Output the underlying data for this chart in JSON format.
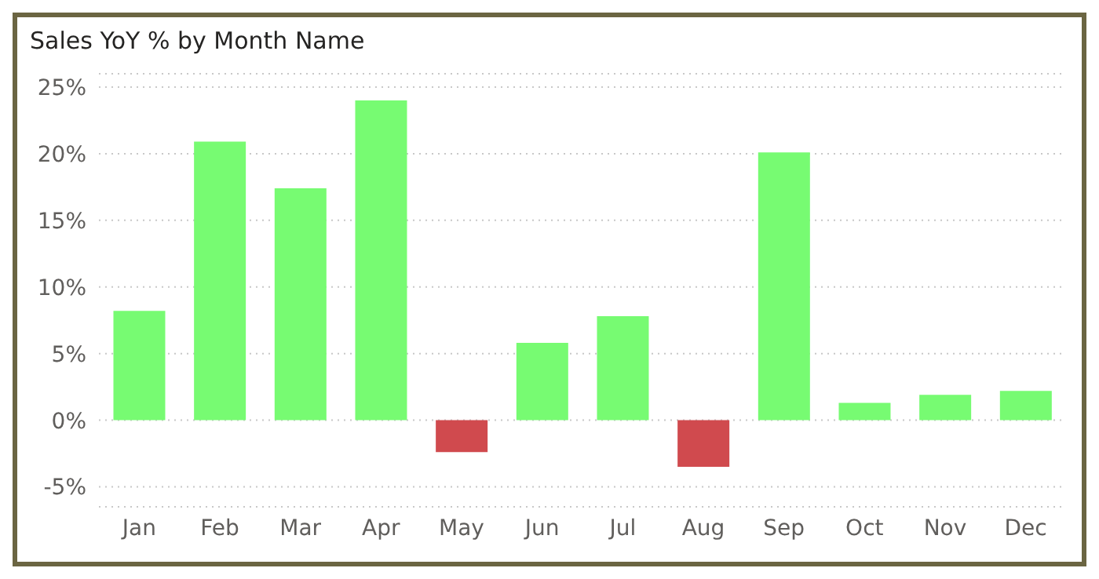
{
  "chart_data": {
    "type": "bar",
    "title": "Sales YoY % by Month Name",
    "categories": [
      "Jan",
      "Feb",
      "Mar",
      "Apr",
      "May",
      "Jun",
      "Jul",
      "Aug",
      "Sep",
      "Oct",
      "Nov",
      "Dec"
    ],
    "values": [
      8.2,
      20.9,
      17.4,
      24.0,
      -2.4,
      5.8,
      7.8,
      -3.5,
      20.1,
      1.3,
      1.9,
      2.2
    ],
    "colors": [
      "#77fb72",
      "#77fb72",
      "#77fb72",
      "#77fb72",
      "#d04a4e",
      "#77fb72",
      "#77fb72",
      "#d04a4e",
      "#77fb72",
      "#77fb72",
      "#77fb72",
      "#77fb72"
    ],
    "ylim": [
      -6.5,
      26
    ],
    "yticks": [
      {
        "value": -5,
        "label": "-5%"
      },
      {
        "value": 0,
        "label": "0%"
      },
      {
        "value": 5,
        "label": "5%"
      },
      {
        "value": 10,
        "label": "10%"
      },
      {
        "value": 15,
        "label": "15%"
      },
      {
        "value": 20,
        "label": "20%"
      },
      {
        "value": 25,
        "label": "25%"
      }
    ],
    "grid": "y"
  }
}
